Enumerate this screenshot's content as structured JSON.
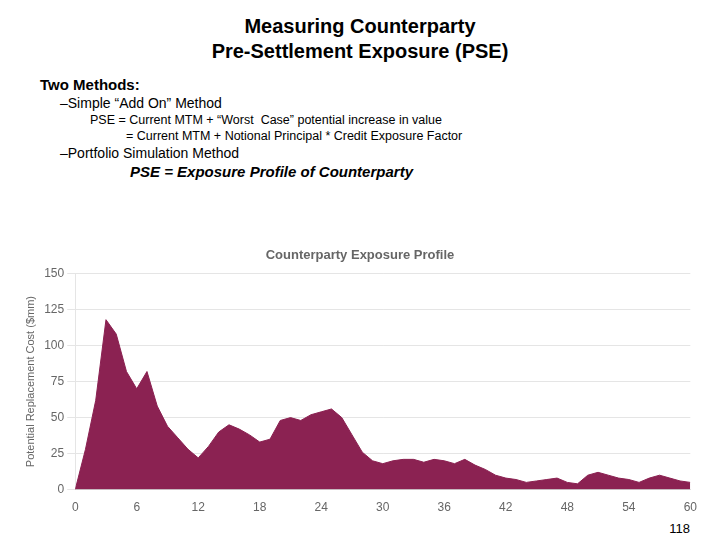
{
  "title": [
    "Measuring Counterparty",
    "Pre-Settlement Exposure (PSE)"
  ],
  "annotations": [
    "Two Methods:",
    "–Simple “Add On” Method",
    "PSE = Current MTM + “Worst  Case” potential increase in value",
    "= Current MTM + Notional Principal * Credit Exposure Factor",
    "–Portfolio Simulation Method",
    "PSE = Exposure Profile of Counterparty",
    "118"
  ],
  "chart_data": {
    "type": "area",
    "title": "Counterparty Exposure Profile",
    "y_label": "Potential Replacement Cost ($mm)",
    "x": [
      0,
      1,
      2,
      3,
      4,
      5,
      6,
      7,
      8,
      9,
      10,
      11,
      12,
      13,
      14,
      15,
      16,
      17,
      18,
      19,
      20,
      21,
      22,
      23,
      24,
      25,
      26,
      27,
      28,
      29,
      30,
      31,
      32,
      33,
      34,
      35,
      36,
      37,
      38,
      39,
      40,
      41,
      42,
      43,
      44,
      45,
      46,
      47,
      48,
      49,
      50,
      51,
      52,
      53,
      54,
      55,
      56,
      57,
      58,
      59,
      60
    ],
    "values": [
      0,
      28,
      62,
      118,
      108,
      82,
      70,
      82,
      58,
      44,
      36,
      28,
      22,
      30,
      40,
      45,
      42,
      38,
      33,
      35,
      48,
      50,
      48,
      52,
      54,
      56,
      50,
      38,
      26,
      20,
      18,
      20,
      21,
      21,
      19,
      21,
      20,
      18,
      21,
      17,
      14,
      10,
      8,
      7,
      5,
      6,
      7,
      8,
      5,
      4,
      10,
      12,
      10,
      8,
      7,
      5,
      8,
      10,
      8,
      6,
      5
    ],
    "color": "#8B2252",
    "xlim": [
      0,
      60
    ],
    "xticks": [
      0,
      6,
      12,
      18,
      24,
      30,
      36,
      42,
      48,
      54,
      60
    ],
    "ylim": [
      0,
      150
    ],
    "yticks": [
      0,
      25,
      50,
      75,
      100,
      125,
      150
    ],
    "grid": true
  }
}
